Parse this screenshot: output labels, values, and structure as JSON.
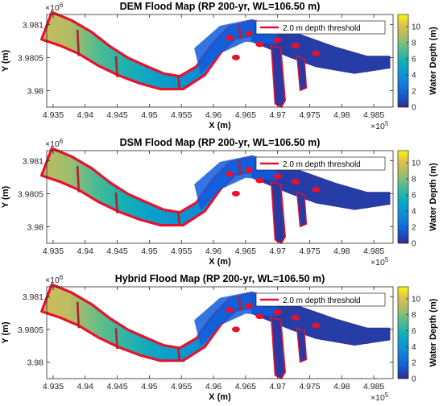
{
  "chart_data": [
    {
      "type": "heatmap",
      "title": "DEM Flood Map (RP 200-yr, WL=106.50 m)",
      "xlabel": "X (m)",
      "ylabel": "Y (m)",
      "x_exponent": "×10",
      "x_exponent_power": "5",
      "y_exponent": "×10",
      "y_exponent_power": "6",
      "xlim": [
        4.934,
        4.988
      ],
      "ylim": [
        3.97975,
        3.98115
      ],
      "x_ticks": [
        4.935,
        4.94,
        4.945,
        4.95,
        4.955,
        4.96,
        4.965,
        4.97,
        4.975,
        4.98,
        4.985
      ],
      "x_tick_labels": [
        "4.935",
        "4.94",
        "4.945",
        "4.95",
        "4.955",
        "4.96",
        "4.965",
        "4.97",
        "4.975",
        "4.98",
        "4.985"
      ],
      "y_ticks": [
        3.98,
        3.9805,
        3.981
      ],
      "y_tick_labels": [
        "3.98",
        "3.9805",
        "3.981"
      ],
      "colorbar": {
        "label": "Water Depth (m)",
        "range": [
          0,
          11.5
        ],
        "ticks": [
          0,
          2,
          4,
          6,
          8,
          10
        ],
        "tick_labels": [
          "0",
          "2",
          "4",
          "6",
          "8",
          "10"
        ],
        "colormap": "parula"
      },
      "legend": {
        "entries": [
          {
            "label": "2.0 m depth threshold",
            "color": "#e8112d"
          }
        ],
        "placement": "top-right"
      }
    },
    {
      "type": "heatmap",
      "title": "DSM Flood Map (RP 200-yr, WL=106.50 m)",
      "xlabel": "X (m)",
      "ylabel": "Y (m)",
      "x_exponent": "×10",
      "x_exponent_power": "5",
      "y_exponent": "×10",
      "y_exponent_power": "6",
      "xlim": [
        4.934,
        4.988
      ],
      "ylim": [
        3.97975,
        3.98115
      ],
      "x_ticks": [
        4.935,
        4.94,
        4.945,
        4.95,
        4.955,
        4.96,
        4.965,
        4.97,
        4.975,
        4.98,
        4.985
      ],
      "x_tick_labels": [
        "4.935",
        "4.94",
        "4.945",
        "4.95",
        "4.955",
        "4.96",
        "4.965",
        "4.97",
        "4.975",
        "4.98",
        "4.985"
      ],
      "y_ticks": [
        3.98,
        3.9805,
        3.981
      ],
      "y_tick_labels": [
        "3.98",
        "3.9805",
        "3.981"
      ],
      "colorbar": {
        "label": "Water Depth (m)",
        "range": [
          0,
          11.5
        ],
        "ticks": [
          0,
          2,
          4,
          6,
          8,
          10
        ],
        "tick_labels": [
          "0",
          "2",
          "4",
          "6",
          "8",
          "10"
        ],
        "colormap": "parula"
      },
      "legend": {
        "entries": [
          {
            "label": "2.0 m depth threshold",
            "color": "#e8112d"
          }
        ],
        "placement": "top-right"
      }
    },
    {
      "type": "heatmap",
      "title": "Hybrid Flood Map (RP 200-yr, WL=106.50 m)",
      "xlabel": "X (m)",
      "ylabel": "Y (m)",
      "x_exponent": "×10",
      "x_exponent_power": "5",
      "y_exponent": "×10",
      "y_exponent_power": "6",
      "xlim": [
        4.934,
        4.988
      ],
      "ylim": [
        3.97975,
        3.98115
      ],
      "x_ticks": [
        4.935,
        4.94,
        4.945,
        4.95,
        4.955,
        4.96,
        4.965,
        4.97,
        4.975,
        4.98,
        4.985
      ],
      "x_tick_labels": [
        "4.935",
        "4.94",
        "4.945",
        "4.95",
        "4.955",
        "4.96",
        "4.965",
        "4.97",
        "4.975",
        "4.98",
        "4.985"
      ],
      "y_ticks": [
        3.98,
        3.9805,
        3.981
      ],
      "y_tick_labels": [
        "3.98",
        "3.9805",
        "3.981"
      ],
      "colorbar": {
        "label": "Water Depth (m)",
        "range": [
          0,
          11.5
        ],
        "ticks": [
          0,
          2,
          4,
          6,
          8,
          10
        ],
        "tick_labels": [
          "0",
          "2",
          "4",
          "6",
          "8",
          "10"
        ],
        "colormap": "parula"
      },
      "legend": {
        "entries": [
          {
            "label": "2.0 m depth threshold",
            "color": "#e8112d"
          }
        ],
        "placement": "top-right"
      }
    }
  ]
}
